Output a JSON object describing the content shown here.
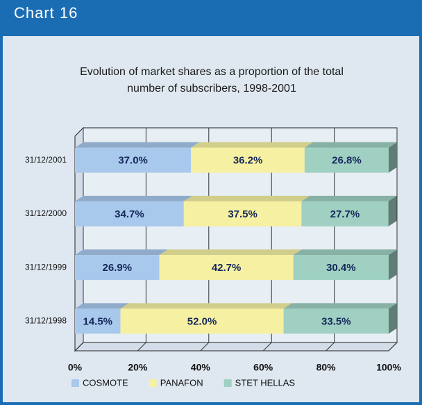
{
  "header": "Chart 16",
  "chart_data": {
    "type": "stacked-bar-horizontal",
    "title": "Evolution of market shares as a proportion of the total number of subscribers, 1998-2001",
    "categories": [
      "31/12/2001",
      "31/12/2000",
      "31/12/1999",
      "31/12/1998"
    ],
    "series": [
      {
        "name": "COSMOTE",
        "color": "#a9c9ec",
        "values": [
          37.0,
          34.7,
          26.9,
          14.5
        ],
        "value_labels": [
          "37.0%",
          "34.7%",
          "26.9%",
          "14.5%"
        ]
      },
      {
        "name": "PANAFON",
        "color": "#f6f1a2",
        "values": [
          36.2,
          37.5,
          42.7,
          52.0
        ],
        "value_labels": [
          "36.2%",
          "37.5%",
          "42.7%",
          "52.0%"
        ]
      },
      {
        "name": "STET HELLAS",
        "color": "#9fd0c2",
        "values": [
          26.8,
          27.7,
          30.4,
          33.5
        ],
        "value_labels": [
          "26.8%",
          "27.7%",
          "30.4%",
          "33.5%"
        ]
      }
    ],
    "xlim": [
      0,
      100
    ],
    "xticks": [
      {
        "value": 0,
        "label": "0%"
      },
      {
        "value": 20,
        "label": "20%"
      },
      {
        "value": 40,
        "label": "40%"
      },
      {
        "value": 60,
        "label": "60%"
      },
      {
        "value": 80,
        "label": "80%"
      },
      {
        "value": 100,
        "label": "100%"
      }
    ],
    "grid": true,
    "legend": "bottom"
  }
}
